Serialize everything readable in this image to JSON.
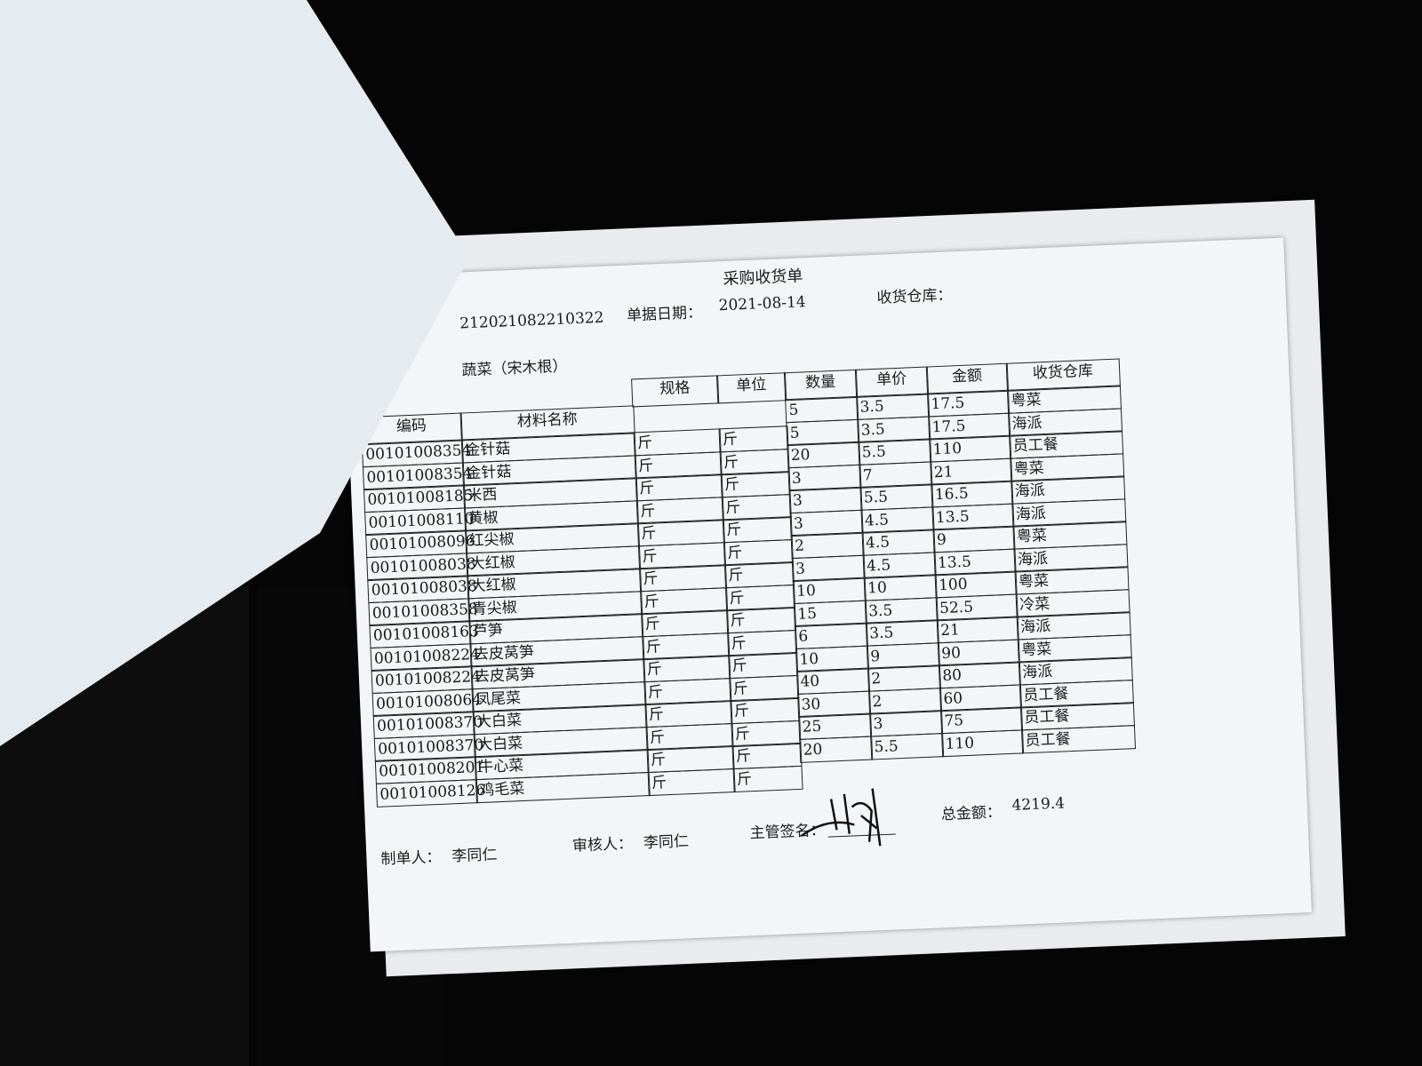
{
  "document": {
    "title": "采购收货单",
    "order_number": "212021082210322",
    "date_label": "单据日期：",
    "date": "2021-08-14",
    "warehouse_label": "收货仓库：",
    "supplier": "蔬菜（宋木根）",
    "columns": {
      "code": "编码",
      "name": "材料名称",
      "spec": "规格",
      "unit": "单位",
      "qty": "数量",
      "price": "单价",
      "amount": "金额",
      "warehouse": "收货仓库"
    },
    "rows": [
      {
        "code": "00101008354",
        "name": "金针菇",
        "spec": "斤",
        "unit": "斤",
        "qty": "5",
        "price": "3.5",
        "amount": "17.5",
        "warehouse": "粤菜"
      },
      {
        "code": "00101008354",
        "name": "金针菇",
        "spec": "斤",
        "unit": "斤",
        "qty": "5",
        "price": "3.5",
        "amount": "17.5",
        "warehouse": "海派"
      },
      {
        "code": "00101008185",
        "name": "米西",
        "spec": "斤",
        "unit": "斤",
        "qty": "20",
        "price": "5.5",
        "amount": "110",
        "warehouse": "员工餐"
      },
      {
        "code": "00101008110",
        "name": "黄椒",
        "spec": "斤",
        "unit": "斤",
        "qty": "3",
        "price": "7",
        "amount": "21",
        "warehouse": "粤菜"
      },
      {
        "code": "00101008096",
        "name": "红尖椒",
        "spec": "斤",
        "unit": "斤",
        "qty": "3",
        "price": "5.5",
        "amount": "16.5",
        "warehouse": "海派"
      },
      {
        "code": "00101008038",
        "name": "大红椒",
        "spec": "斤",
        "unit": "斤",
        "qty": "3",
        "price": "4.5",
        "amount": "13.5",
        "warehouse": "海派"
      },
      {
        "code": "00101008038",
        "name": "大红椒",
        "spec": "斤",
        "unit": "斤",
        "qty": "2",
        "price": "4.5",
        "amount": "9",
        "warehouse": "粤菜"
      },
      {
        "code": "00101008358",
        "name": "青尖椒",
        "spec": "斤",
        "unit": "斤",
        "qty": "3",
        "price": "4.5",
        "amount": "13.5",
        "warehouse": "海派"
      },
      {
        "code": "00101008163",
        "name": "芦笋",
        "spec": "斤",
        "unit": "斤",
        "qty": "10",
        "price": "10",
        "amount": "100",
        "warehouse": "粤菜"
      },
      {
        "code": "00101008224",
        "name": "去皮莴笋",
        "spec": "斤",
        "unit": "斤",
        "qty": "15",
        "price": "3.5",
        "amount": "52.5",
        "warehouse": "冷菜"
      },
      {
        "code": "00101008224",
        "name": "去皮莴笋",
        "spec": "斤",
        "unit": "斤",
        "qty": "6",
        "price": "3.5",
        "amount": "21",
        "warehouse": "海派"
      },
      {
        "code": "00101008064",
        "name": "凤尾菜",
        "spec": "斤",
        "unit": "斤",
        "qty": "10",
        "price": "9",
        "amount": "90",
        "warehouse": "粤菜"
      },
      {
        "code": "00101008370",
        "name": "大白菜",
        "spec": "斤",
        "unit": "斤",
        "qty": "40",
        "price": "2",
        "amount": "80",
        "warehouse": "海派"
      },
      {
        "code": "00101008370",
        "name": "大白菜",
        "spec": "斤",
        "unit": "斤",
        "qty": "30",
        "price": "2",
        "amount": "60",
        "warehouse": "员工餐"
      },
      {
        "code": "00101008201",
        "name": "牛心菜",
        "spec": "斤",
        "unit": "斤",
        "qty": "25",
        "price": "3",
        "amount": "75",
        "warehouse": "员工餐"
      },
      {
        "code": "00101008126",
        "name": "鸡毛菜",
        "spec": "斤",
        "unit": "斤",
        "qty": "20",
        "price": "5.5",
        "amount": "110",
        "warehouse": "员工餐"
      }
    ],
    "footer": {
      "maker_label": "制单人：",
      "maker": "李同仁",
      "reviewer_label": "审核人：",
      "reviewer": "李同仁",
      "supervisor_label": "主管签名：",
      "total_label": "总金额：",
      "total": "4219.4"
    }
  },
  "colors": {
    "background": "#050505",
    "paper": "#f4f5f8",
    "ink": "#1c1c1c",
    "pen_blue": "#2a2a6a"
  }
}
